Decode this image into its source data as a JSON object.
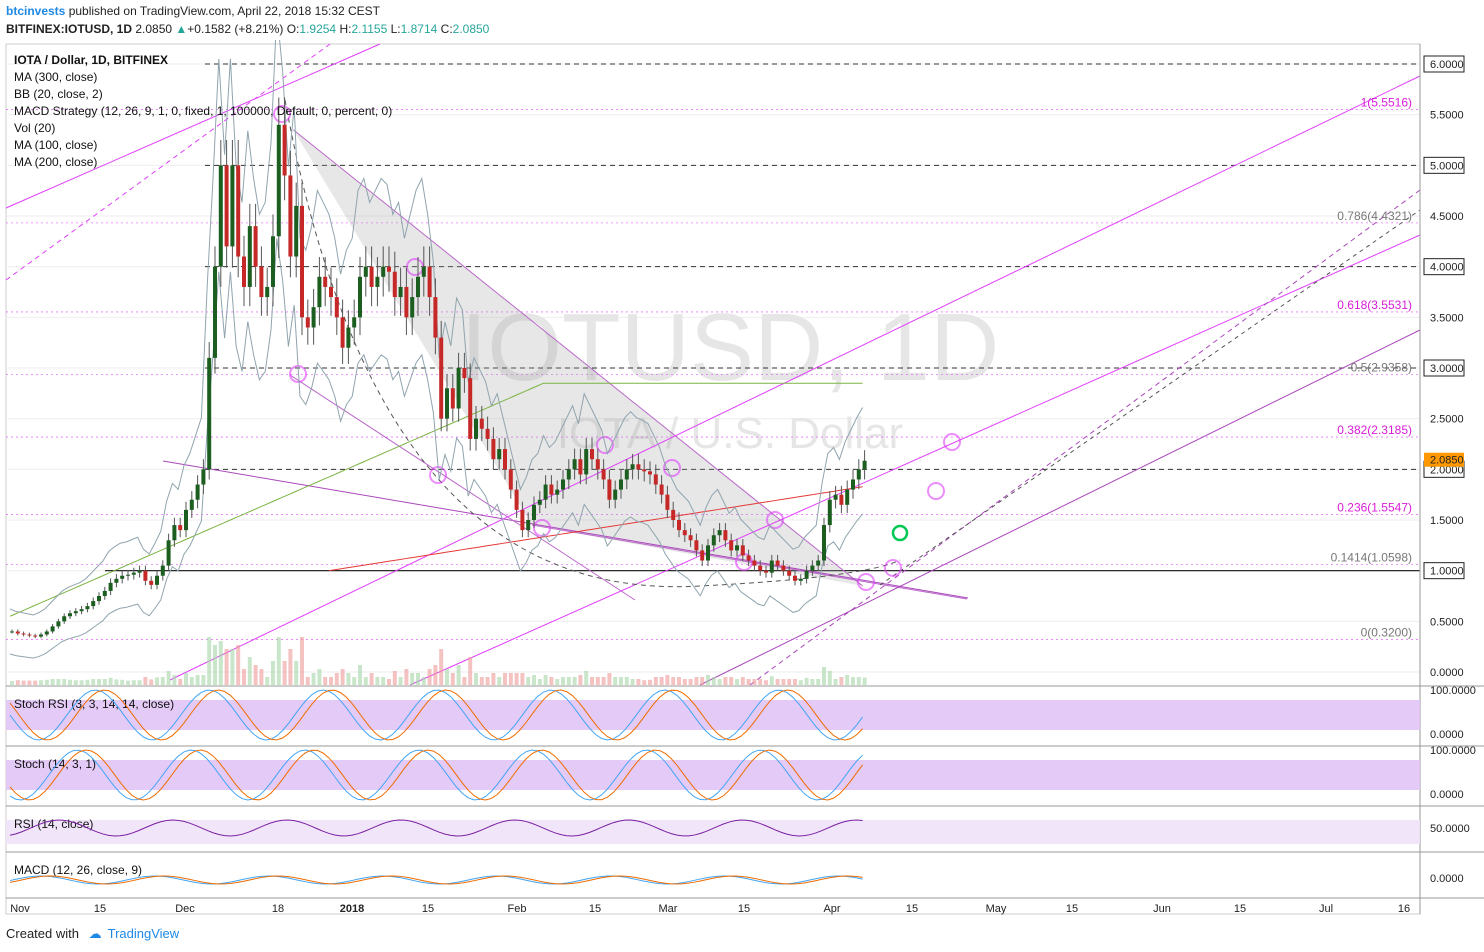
{
  "header": {
    "author": "btcinvests",
    "published": "published on TradingView.com, April 22, 2018 15:32 CEST",
    "symbol": "BITFINEX:IOTUSD, 1D",
    "last": "2.0850",
    "change": "+0.1582 (+8.21%)",
    "open_label": "O:",
    "open": "1.9254",
    "high_label": "H:",
    "high": "2.1155",
    "low_label": "L:",
    "low": "1.8714",
    "close_label": "C:",
    "close": "2.0850"
  },
  "footer": {
    "created_with": "Created with",
    "brand": "TradingView"
  },
  "watermark": {
    "main": "IOTUSD, 1D",
    "sub": "IOTA / U.S. Dollar"
  },
  "colors": {
    "bull": "#1b5e20",
    "bear": "#c62828",
    "fib": "#e040fb",
    "bb": "#1e88e5",
    "ma": "#7cb342",
    "ma2": "#e53935"
  },
  "chart_data": {
    "type": "candlestick",
    "title": "IOTA / Dollar, 1D, BITFINEX",
    "indicators": [
      "MA (300, close)",
      "BB (20, close, 2)",
      "MACD Strategy (12, 26, 9, 1, 0, fixed, 1, 100000, Default, 0, percent, 0)",
      "Vol (20)",
      "MA (100, close)",
      "MA (200, close)"
    ],
    "y_ticks": [
      "6.0000",
      "5.5000",
      "5.0000",
      "4.5000",
      "4.0000",
      "3.5000",
      "3.0000",
      "2.5000",
      "2.0000",
      "1.5000",
      "1.0000",
      "0.5000",
      "0.0000"
    ],
    "ylim": [
      0,
      6.2
    ],
    "price_label": "2.0850",
    "x_ticks": [
      "Nov",
      "15",
      "Dec",
      "18",
      "2018",
      "15",
      "Feb",
      "15",
      "Mar",
      "15",
      "Apr",
      "15",
      "May",
      "15",
      "Jun",
      "15",
      "Jul",
      "16"
    ],
    "fib_levels": [
      {
        "label": "1(5.5516)",
        "value": 5.5516
      },
      {
        "label": "0.786(4.4321)",
        "value": 4.4321
      },
      {
        "label": "0.618(3.5531)",
        "value": 3.5531
      },
      {
        "label": "0.5(2.9358)",
        "value": 2.9358
      },
      {
        "label": "0.382(2.3185)",
        "value": 2.3185
      },
      {
        "label": "0.236(1.5547)",
        "value": 1.5547
      },
      {
        "label": "0.1414(1.0598)",
        "value": 1.0598
      },
      {
        "label": "0(0.3200)",
        "value": 0.32
      }
    ],
    "horizontal_levels": [
      6.0,
      5.0,
      4.0,
      3.0,
      2.0
    ],
    "support_level": 1.0,
    "closes": [
      0.4,
      0.38,
      0.37,
      0.36,
      0.35,
      0.37,
      0.4,
      0.45,
      0.5,
      0.55,
      0.58,
      0.6,
      0.62,
      0.65,
      0.7,
      0.75,
      0.8,
      0.88,
      0.92,
      0.95,
      0.96,
      0.98,
      1.0,
      0.9,
      0.86,
      0.95,
      1.05,
      1.3,
      1.45,
      1.4,
      1.6,
      1.7,
      1.85,
      2.0,
      3.1,
      4.0,
      5.0,
      4.2,
      5.0,
      4.1,
      3.8,
      4.4,
      4.0,
      3.7,
      3.8,
      4.3,
      5.4,
      4.9,
      4.1,
      4.6,
      3.5,
      3.4,
      3.6,
      3.9,
      3.8,
      3.7,
      3.5,
      3.2,
      3.4,
      3.5,
      3.9,
      4.0,
      3.8,
      3.9,
      4.0,
      3.95,
      3.7,
      3.8,
      3.5,
      3.7,
      3.9,
      4.0,
      3.7,
      3.3,
      2.5,
      2.8,
      2.6,
      3.0,
      2.9,
      2.3,
      2.5,
      2.4,
      2.3,
      2.1,
      2.2,
      2.0,
      1.8,
      1.6,
      1.4,
      1.5,
      1.65,
      1.7,
      1.85,
      1.75,
      1.8,
      1.9,
      2.0,
      2.1,
      1.95,
      2.2,
      2.1,
      2.0,
      1.9,
      1.7,
      1.8,
      1.9,
      2.0,
      2.05,
      2.0,
      1.98,
      1.95,
      1.85,
      1.75,
      1.6,
      1.5,
      1.4,
      1.35,
      1.3,
      1.2,
      1.1,
      1.25,
      1.35,
      1.4,
      1.3,
      1.2,
      1.25,
      1.15,
      1.1,
      1.05,
      1.0,
      0.98,
      1.1,
      1.05,
      1.0,
      0.95,
      0.9,
      0.92,
      1.0,
      1.05,
      1.1,
      1.45,
      1.7,
      1.75,
      1.65,
      1.8,
      1.9,
      2.0,
      2.085
    ],
    "stoch_rsi": {
      "label": "Stoch RSI (3, 3, 14, 14, close)",
      "ticks": [
        "100.0000",
        "0.0000"
      ]
    },
    "stoch": {
      "label": "Stoch (14, 3, 1)",
      "ticks": [
        "100.0000",
        "0.0000"
      ]
    },
    "rsi": {
      "label": "RSI (14, close)",
      "ticks": [
        "50.0000"
      ]
    },
    "macd": {
      "label": "MACD (12, 26, close, 9)",
      "ticks": [
        "0.0000"
      ]
    }
  }
}
